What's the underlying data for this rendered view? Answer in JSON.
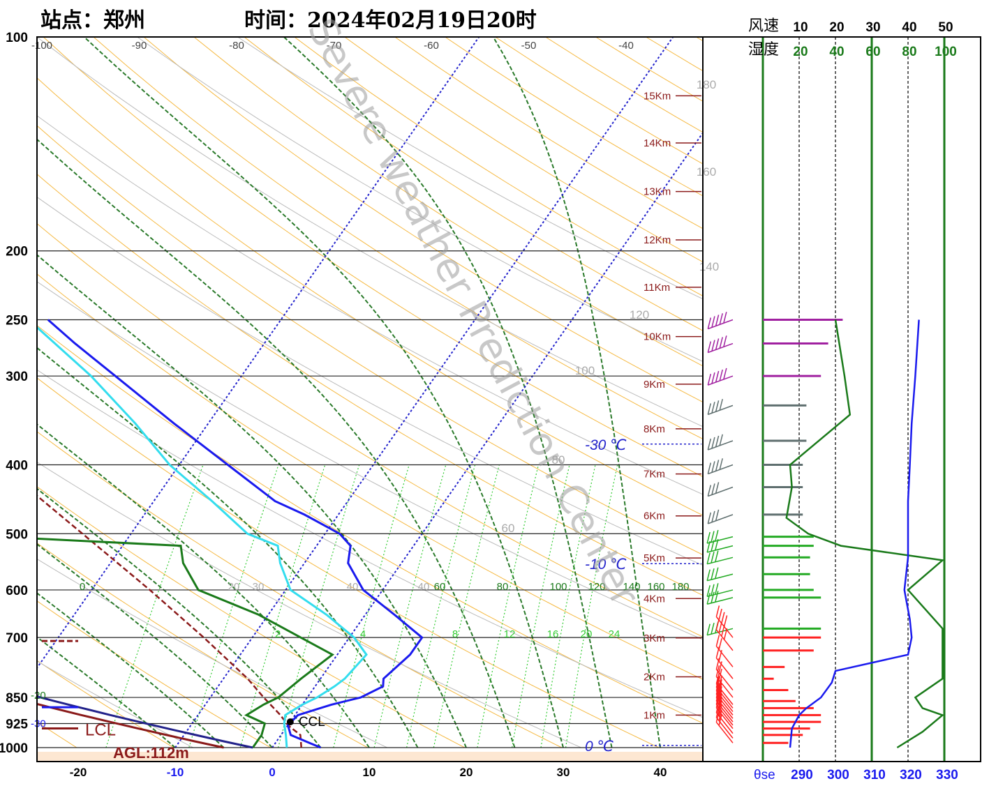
{
  "header": {
    "station": "站点：郑州",
    "time": "时间：2024年02月19日20时"
  },
  "watermark": "Severe weather Prediction Center",
  "chart_data": {
    "type": "skew-t",
    "pressure_labels": [
      "100",
      "200",
      "250",
      "300",
      "400",
      "500",
      "600",
      "700",
      "850",
      "925",
      "1000"
    ],
    "pressure_levels": [
      100,
      200,
      250,
      300,
      400,
      500,
      600,
      700,
      850,
      925,
      1000
    ],
    "temperature_ticks": [
      "-20",
      "-10",
      "0",
      "10",
      "20",
      "30",
      "40"
    ],
    "top_temperature_labels": [
      "-100",
      "-90",
      "-80",
      "-70",
      "-60",
      "-50",
      "-40"
    ],
    "theta_labels": [
      "180",
      "160",
      "140",
      "120",
      "100",
      "80",
      "60"
    ],
    "mixing_ratio_labels": [
      "2",
      "4",
      "8",
      "12",
      "16",
      "20",
      "24"
    ],
    "saturated_labels": [
      "0",
      "20",
      "30",
      "40",
      "40",
      "60",
      "80",
      "100",
      "120",
      "140",
      "160",
      "180"
    ],
    "height_labels": [
      "15Km",
      "14Km",
      "13Km",
      "12Km",
      "11Km",
      "10Km",
      "9Km",
      "8Km",
      "7Km",
      "6Km",
      "5Km",
      "4Km",
      "3Km",
      "2Km",
      "1Km"
    ],
    "height_km": [
      15,
      14,
      13,
      12,
      11,
      10,
      9,
      8,
      7,
      6,
      5,
      4,
      3,
      2,
      1
    ],
    "height_pressure": [
      121,
      141,
      165,
      193,
      225,
      264,
      308,
      356,
      412,
      472,
      541,
      617,
      701,
      795,
      900
    ],
    "isotherm_labels": [
      "-30 ℃",
      "-10 ℃",
      "0 ℃"
    ],
    "isotherm_pressure": [
      374,
      551,
      993
    ],
    "lcl": {
      "label": "LCL",
      "agl": "AGL:112m"
    },
    "ccl_label": "CCL",
    "left_markers": [
      "-20",
      "-30"
    ],
    "temperature_profile": [
      {
        "p": 1000,
        "t": 5.0
      },
      {
        "p": 985,
        "t": 3.5
      },
      {
        "p": 960,
        "t": 1.0
      },
      {
        "p": 930,
        "t": 0.0
      },
      {
        "p": 900,
        "t": 0.3
      },
      {
        "p": 870,
        "t": 3.0
      },
      {
        "p": 850,
        "t": 5.5
      },
      {
        "p": 820,
        "t": 7.0
      },
      {
        "p": 800,
        "t": 6.5
      },
      {
        "p": 740,
        "t": 7.5
      },
      {
        "p": 700,
        "t": 7.5
      },
      {
        "p": 650,
        "t": 3.0
      },
      {
        "p": 600,
        "t": -2.0
      },
      {
        "p": 550,
        "t": -5.5
      },
      {
        "p": 520,
        "t": -6.5
      },
      {
        "p": 500,
        "t": -8.5
      },
      {
        "p": 470,
        "t": -13.5
      },
      {
        "p": 450,
        "t": -17.5
      },
      {
        "p": 400,
        "t": -25.0
      },
      {
        "p": 350,
        "t": -33.5
      },
      {
        "p": 300,
        "t": -43.0
      },
      {
        "p": 270,
        "t": -49.5
      },
      {
        "p": 250,
        "t": -54.0
      }
    ],
    "dewpoint_profile": [
      {
        "p": 1000,
        "t": -2.0
      },
      {
        "p": 960,
        "t": -2.0
      },
      {
        "p": 925,
        "t": -2.5
      },
      {
        "p": 900,
        "t": -5.0
      },
      {
        "p": 870,
        "t": -4.0
      },
      {
        "p": 850,
        "t": -3.0
      },
      {
        "p": 800,
        "t": -2.0
      },
      {
        "p": 740,
        "t": -0.5
      },
      {
        "p": 700,
        "t": -5.0
      },
      {
        "p": 650,
        "t": -11.0
      },
      {
        "p": 600,
        "t": -19.0
      },
      {
        "p": 550,
        "t": -22.5
      },
      {
        "p": 520,
        "t": -24.0
      },
      {
        "p": 500,
        "t": -50.0
      },
      {
        "p": 470,
        "t": -60.0
      },
      {
        "p": 450,
        "t": -63.0
      },
      {
        "p": 400,
        "t": -68.0
      },
      {
        "p": 370,
        "t": -62.0
      },
      {
        "p": 330,
        "t": -59.0
      },
      {
        "p": 300,
        "t": -62.0
      },
      {
        "p": 270,
        "t": -66.0
      },
      {
        "p": 250,
        "t": -69.0
      }
    ],
    "parcel_profile": [
      {
        "p": 1000,
        "t": 3.0
      },
      {
        "p": 960,
        "t": 2.0
      },
      {
        "p": 930,
        "t": 0.0
      },
      {
        "p": 900,
        "t": -1.5
      },
      {
        "p": 850,
        "t": -4.5
      },
      {
        "p": 800,
        "t": -7.5
      },
      {
        "p": 700,
        "t": -15.0
      },
      {
        "p": 600,
        "t": -24.0
      },
      {
        "p": 500,
        "t": -35.0
      },
      {
        "p": 400,
        "t": -48.5
      },
      {
        "p": 300,
        "t": -65.0
      },
      {
        "p": 250,
        "t": -75.0
      },
      {
        "p": 200,
        "t": -86.5
      },
      {
        "p": 150,
        "t": -102.0
      },
      {
        "p": 130,
        "t": -110.0
      }
    ],
    "wetbulb_profile": [
      {
        "p": 1000,
        "t": 1.5
      },
      {
        "p": 960,
        "t": 0.5
      },
      {
        "p": 925,
        "t": -0.5
      },
      {
        "p": 900,
        "t": -1.0
      },
      {
        "p": 870,
        "t": 0.0
      },
      {
        "p": 850,
        "t": 1.0
      },
      {
        "p": 820,
        "t": 2.0
      },
      {
        "p": 800,
        "t": 2.5
      },
      {
        "p": 740,
        "t": 3.0
      },
      {
        "p": 700,
        "t": 0.5
      },
      {
        "p": 650,
        "t": -4.0
      },
      {
        "p": 600,
        "t": -9.5
      },
      {
        "p": 550,
        "t": -12.5
      },
      {
        "p": 520,
        "t": -14.0
      },
      {
        "p": 500,
        "t": -18.0
      },
      {
        "p": 450,
        "t": -24.0
      },
      {
        "p": 400,
        "t": -31.0
      },
      {
        "p": 350,
        "t": -37.5
      },
      {
        "p": 300,
        "t": -45.5
      },
      {
        "p": 250,
        "t": -56.0
      }
    ],
    "side_panel": {
      "wind_label": "风速",
      "humidity_label": "湿度",
      "theta_se_label": "θse",
      "wind_ticks": [
        "10",
        "20",
        "30",
        "40",
        "50"
      ],
      "humidity_ticks": [
        "20",
        "40",
        "60",
        "80",
        "100"
      ],
      "theta_se_ticks": [
        "290",
        "300",
        "310",
        "320",
        "330"
      ],
      "wind_speed_profile": [
        {
          "p": 250,
          "s": 22
        },
        {
          "p": 270,
          "s": 18
        },
        {
          "p": 300,
          "s": 16
        },
        {
          "p": 330,
          "s": 12
        },
        {
          "p": 370,
          "s": 12
        },
        {
          "p": 400,
          "s": 11
        },
        {
          "p": 430,
          "s": 11
        },
        {
          "p": 470,
          "s": 11
        },
        {
          "p": 505,
          "s": 14
        },
        {
          "p": 520,
          "s": 14
        },
        {
          "p": 540,
          "s": 13
        },
        {
          "p": 570,
          "s": 13
        },
        {
          "p": 600,
          "s": 14
        },
        {
          "p": 615,
          "s": 16
        },
        {
          "p": 680,
          "s": 16
        },
        {
          "p": 700,
          "s": 16
        },
        {
          "p": 730,
          "s": 14
        },
        {
          "p": 770,
          "s": 6
        },
        {
          "p": 800,
          "s": 3
        },
        {
          "p": 830,
          "s": 7
        },
        {
          "p": 860,
          "s": 9
        },
        {
          "p": 880,
          "s": 14
        },
        {
          "p": 900,
          "s": 16
        },
        {
          "p": 920,
          "s": 16
        },
        {
          "p": 940,
          "s": 13
        },
        {
          "p": 960,
          "s": 11
        },
        {
          "p": 985,
          "s": 7
        }
      ],
      "humidity_profile": [
        {
          "p": 250,
          "h": 40
        },
        {
          "p": 300,
          "h": 45
        },
        {
          "p": 340,
          "h": 48
        },
        {
          "p": 400,
          "h": 15
        },
        {
          "p": 430,
          "h": 16
        },
        {
          "p": 475,
          "h": 13
        },
        {
          "p": 500,
          "h": 25
        },
        {
          "p": 520,
          "h": 43
        },
        {
          "p": 545,
          "h": 99
        },
        {
          "p": 600,
          "h": 80
        },
        {
          "p": 680,
          "h": 99
        },
        {
          "p": 800,
          "h": 99
        },
        {
          "p": 850,
          "h": 84
        },
        {
          "p": 880,
          "h": 88
        },
        {
          "p": 900,
          "h": 99
        },
        {
          "p": 950,
          "h": 88
        },
        {
          "p": 1000,
          "h": 74
        }
      ],
      "theta_se_profile": [
        {
          "p": 250,
          "th": 323
        },
        {
          "p": 300,
          "th": 322
        },
        {
          "p": 350,
          "th": 321
        },
        {
          "p": 400,
          "th": 320.5
        },
        {
          "p": 450,
          "th": 320
        },
        {
          "p": 500,
          "th": 320
        },
        {
          "p": 540,
          "th": 320
        },
        {
          "p": 600,
          "th": 319
        },
        {
          "p": 620,
          "th": 319.5
        },
        {
          "p": 660,
          "th": 320.5
        },
        {
          "p": 700,
          "th": 321
        },
        {
          "p": 740,
          "th": 320
        },
        {
          "p": 780,
          "th": 300
        },
        {
          "p": 810,
          "th": 299
        },
        {
          "p": 850,
          "th": 296
        },
        {
          "p": 880,
          "th": 292
        },
        {
          "p": 900,
          "th": 290
        },
        {
          "p": 940,
          "th": 288
        },
        {
          "p": 1000,
          "th": 287.5
        }
      ]
    },
    "wind_profile": [
      {
        "p": 250,
        "spd": 24,
        "color": "#a020a0"
      },
      {
        "p": 270,
        "spd": 24,
        "color": "#a020a0"
      },
      {
        "p": 300,
        "spd": 24,
        "color": "#a020a0"
      },
      {
        "p": 330,
        "spd": 14,
        "color": "#5f6f6f"
      },
      {
        "p": 370,
        "spd": 14,
        "color": "#5f6f6f"
      },
      {
        "p": 400,
        "spd": 14,
        "color": "#5f6f6f"
      },
      {
        "p": 430,
        "spd": 10,
        "color": "#5f6f6f"
      },
      {
        "p": 470,
        "spd": 10,
        "color": "#5f6f6f"
      },
      {
        "p": 505,
        "spd": 12,
        "color": "#22aa22"
      },
      {
        "p": 520,
        "spd": 12,
        "color": "#22aa22"
      },
      {
        "p": 540,
        "spd": 12,
        "color": "#22aa22"
      },
      {
        "p": 570,
        "spd": 12,
        "color": "#22aa22"
      },
      {
        "p": 600,
        "spd": 12,
        "color": "#22aa22"
      },
      {
        "p": 615,
        "spd": 12,
        "color": "#22aa22"
      },
      {
        "p": 680,
        "spd": 12,
        "color": "#22aa22"
      },
      {
        "p": 700,
        "spd": 14,
        "color": "#ff2020"
      },
      {
        "p": 730,
        "spd": 14,
        "color": "#ff2020"
      },
      {
        "p": 770,
        "spd": 8,
        "color": "#ff2020"
      },
      {
        "p": 800,
        "spd": 6,
        "color": "#ff2020"
      },
      {
        "p": 830,
        "spd": 8,
        "color": "#ff2020"
      },
      {
        "p": 850,
        "spd": 8,
        "color": "#ff2020"
      },
      {
        "p": 870,
        "spd": 8,
        "color": "#ff2020"
      },
      {
        "p": 880,
        "spd": 8,
        "color": "#ff2020"
      },
      {
        "p": 890,
        "spd": 8,
        "color": "#ff2020"
      },
      {
        "p": 900,
        "spd": 8,
        "color": "#ff2020"
      },
      {
        "p": 910,
        "spd": 8,
        "color": "#ff2020"
      },
      {
        "p": 920,
        "spd": 8,
        "color": "#ff2020"
      },
      {
        "p": 930,
        "spd": 8,
        "color": "#ff2020"
      },
      {
        "p": 940,
        "spd": 8,
        "color": "#ff2020"
      },
      {
        "p": 955,
        "spd": 8,
        "color": "#ff2020"
      },
      {
        "p": 970,
        "spd": 6,
        "color": "#ff2020"
      },
      {
        "p": 985,
        "spd": 6,
        "color": "#ff2020"
      }
    ],
    "colors": {
      "temperature": "#1a1aee",
      "dewpoint": "#1a7a1a",
      "wetbulb": "#33ddee",
      "parcel": "#8b1a1a",
      "dry_adiabat": "#f5b942",
      "moist_adiabat": "#2a7a2a",
      "mixing_ratio": "#33cc33",
      "isotherm_skew": "#2222cc",
      "theta_line": "#bbbbbb",
      "surface_band": "#fde7d2"
    }
  }
}
